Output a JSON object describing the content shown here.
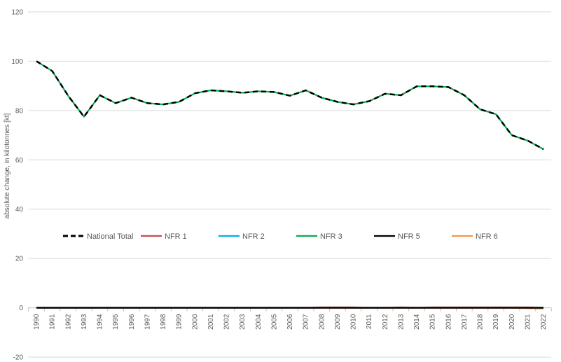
{
  "chart_data": {
    "type": "line",
    "ylabel": "absolute change, in kilotonnes [kt]",
    "ylim": [
      -20,
      120
    ],
    "yticks": [
      -20,
      0,
      20,
      40,
      60,
      80,
      100,
      120
    ],
    "grid": true,
    "legend_position": "middle",
    "categories": [
      "1990",
      "1991",
      "1992",
      "1993",
      "1994",
      "1995",
      "1996",
      "1997",
      "1998",
      "1999",
      "2000",
      "2001",
      "2002",
      "2003",
      "2004",
      "2005",
      "2006",
      "2007",
      "2008",
      "2009",
      "2010",
      "2011",
      "2012",
      "2013",
      "2014",
      "2015",
      "2016",
      "2017",
      "2018",
      "2019",
      "2020",
      "2021",
      "2022"
    ],
    "series": [
      {
        "name": "National Total",
        "color": "#000000",
        "dash": true,
        "values": [
          100.0,
          96.0,
          86.0,
          77.5,
          86.2,
          83.0,
          85.2,
          83.0,
          82.5,
          83.5,
          87.0,
          88.2,
          87.8,
          87.2,
          87.8,
          87.5,
          86.0,
          88.2,
          85.2,
          83.5,
          82.5,
          83.8,
          86.8,
          86.2,
          89.8,
          89.8,
          89.5,
          86.2,
          80.5,
          78.5,
          70.0,
          67.8,
          64.3
        ]
      },
      {
        "name": "NFR 1",
        "color": "#C0504D",
        "values": [
          0.1,
          0.1,
          0.1,
          0.1,
          0.1,
          0.1,
          0.1,
          0.1,
          0.1,
          0.1,
          0.1,
          0.1,
          0.1,
          0.1,
          0.1,
          0.1,
          0.1,
          0.1,
          0.2,
          0.2,
          0.2,
          0.1,
          0.1,
          0.2,
          0.1,
          0.2,
          0.2,
          0.2,
          0.2,
          0.2,
          0.2,
          0.2,
          0.1
        ]
      },
      {
        "name": "NFR 2",
        "color": "#00B0F0",
        "values": [
          0.05,
          0.05,
          0.05,
          0.05,
          0.05,
          0.05,
          0.05,
          0.05,
          0.05,
          0.05,
          0.05,
          0.05,
          0.05,
          0.05,
          0.05,
          0.05,
          0.05,
          0.05,
          0.05,
          0.05,
          0.05,
          0.05,
          0.05,
          0.05,
          0.05,
          0.05,
          0.05,
          0.05,
          0.05,
          0.05,
          0.05,
          0.05,
          0.1
        ]
      },
      {
        "name": "NFR 3",
        "color": "#00B050",
        "values": [
          100.0,
          96.0,
          86.0,
          77.5,
          86.2,
          83.0,
          85.2,
          83.0,
          82.5,
          83.5,
          87.0,
          88.2,
          87.8,
          87.2,
          87.8,
          87.5,
          86.0,
          88.2,
          85.2,
          83.5,
          82.5,
          83.8,
          86.8,
          86.2,
          89.8,
          89.8,
          89.5,
          86.2,
          80.5,
          78.5,
          70.0,
          67.8,
          64.3
        ]
      },
      {
        "name": "NFR 5",
        "color": "#000000",
        "values": [
          0.0,
          0.0,
          0.0,
          0.0,
          0.0,
          0.0,
          0.0,
          0.0,
          0.0,
          0.0,
          0.0,
          0.0,
          0.0,
          0.0,
          0.0,
          0.0,
          0.0,
          0.0,
          0.0,
          0.0,
          0.0,
          0.0,
          0.0,
          0.0,
          0.0,
          0.0,
          0.0,
          0.0,
          0.0,
          0.0,
          0.0,
          0.0,
          0.0
        ]
      },
      {
        "name": "NFR 6",
        "color": "#F79646",
        "values": [
          0.0,
          0.0,
          0.0,
          0.0,
          0.0,
          0.0,
          0.0,
          0.0,
          0.0,
          0.0,
          0.0,
          0.0,
          0.0,
          0.0,
          0.0,
          0.0,
          0.0,
          0.0,
          0.0,
          0.0,
          0.0,
          0.0,
          0.0,
          0.0,
          0.0,
          0.0,
          0.0,
          0.0,
          0.0,
          0.0,
          0.0,
          -0.2,
          -0.3
        ]
      }
    ]
  }
}
